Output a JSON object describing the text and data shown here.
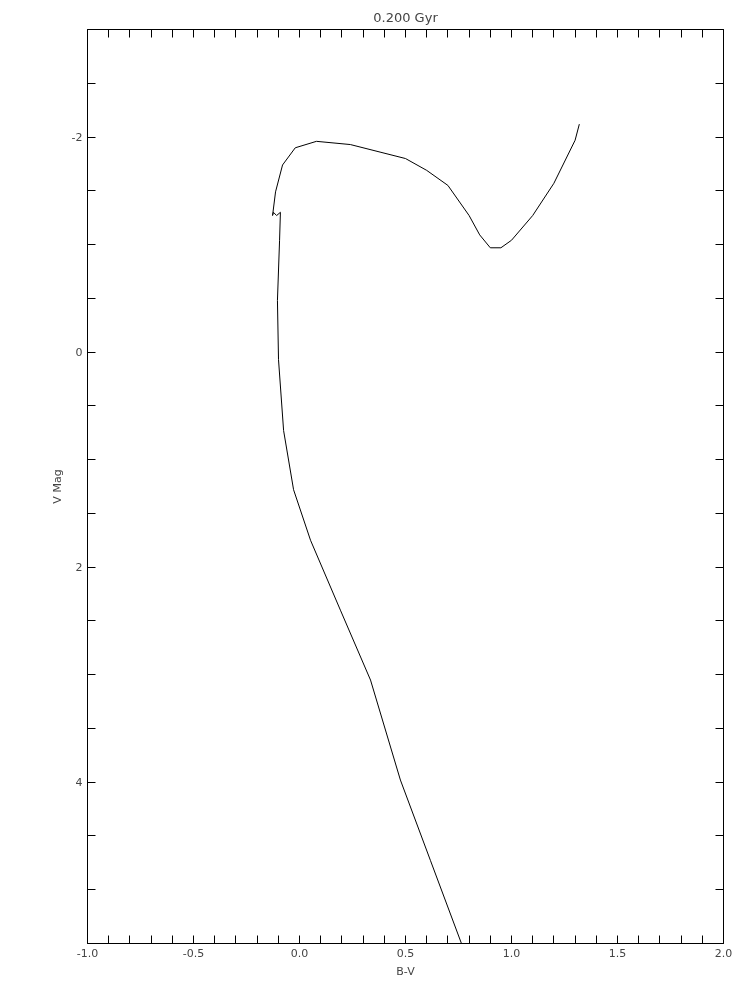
{
  "chart_data": {
    "type": "line",
    "title": "0.200 Gyr",
    "xlabel": "B-V",
    "ylabel": "V Mag",
    "xlim": [
      -1.0,
      2.0
    ],
    "ylim": [
      5.5,
      -3.0
    ],
    "xticks": [
      {
        "value": -1.0,
        "label": "-1.0"
      },
      {
        "value": -0.9,
        "label": null
      },
      {
        "value": -0.8,
        "label": null
      },
      {
        "value": -0.7,
        "label": null
      },
      {
        "value": -0.6,
        "label": null
      },
      {
        "value": -0.5,
        "label": "-0.5"
      },
      {
        "value": -0.4,
        "label": null
      },
      {
        "value": -0.3,
        "label": null
      },
      {
        "value": -0.2,
        "label": null
      },
      {
        "value": -0.1,
        "label": null
      },
      {
        "value": 0,
        "label": "0.0"
      },
      {
        "value": 0.1,
        "label": null
      },
      {
        "value": 0.2,
        "label": null
      },
      {
        "value": 0.3,
        "label": null
      },
      {
        "value": 0.4,
        "label": null
      },
      {
        "value": 0.5,
        "label": "0.5"
      },
      {
        "value": 0.6,
        "label": null
      },
      {
        "value": 0.7,
        "label": null
      },
      {
        "value": 0.8,
        "label": null
      },
      {
        "value": 0.9,
        "label": null
      },
      {
        "value": 1.0,
        "label": "1.0"
      },
      {
        "value": 1.1,
        "label": null
      },
      {
        "value": 1.2,
        "label": null
      },
      {
        "value": 1.3,
        "label": null
      },
      {
        "value": 1.4,
        "label": null
      },
      {
        "value": 1.5,
        "label": "1.5"
      },
      {
        "value": 1.6,
        "label": null
      },
      {
        "value": 1.7,
        "label": null
      },
      {
        "value": 1.8,
        "label": null
      },
      {
        "value": 1.9,
        "label": null
      },
      {
        "value": 2.0,
        "label": "2.0"
      }
    ],
    "yticks": [
      {
        "value": -2.5,
        "label": null
      },
      -2,
      {
        "value": -1.5,
        "label": null
      },
      {
        "value": -1,
        "label": null
      },
      {
        "value": -0.5,
        "label": null
      },
      0,
      {
        "value": 0.5,
        "label": null
      },
      {
        "value": 1,
        "label": null
      },
      {
        "value": 1.5,
        "label": null
      },
      2,
      {
        "value": 2.5,
        "label": null
      },
      {
        "value": 3,
        "label": null
      },
      {
        "value": 3.5,
        "label": null
      },
      4,
      {
        "value": 4.5,
        "label": null
      },
      {
        "value": 5,
        "label": null
      }
    ],
    "grid": false,
    "series": [
      {
        "color": "#000000",
        "x": [
          0.764,
          0.618,
          0.476,
          0.335,
          0.193,
          0.052,
          -0.028,
          -0.075,
          -0.099,
          -0.104,
          -0.094,
          -0.09,
          -0.108,
          -0.123,
          -0.127,
          -0.113,
          -0.08,
          -0.02,
          0.08,
          0.24,
          0.38,
          0.5,
          0.6,
          0.7,
          0.8,
          0.85,
          0.9,
          0.95,
          1.0,
          1.1,
          1.2,
          1.3,
          1.32
        ],
        "values": [
          5.5,
          4.73,
          3.98,
          3.05,
          2.4,
          1.75,
          1.28,
          0.73,
          0.07,
          -0.48,
          -1.04,
          -1.3,
          -1.27,
          -1.3,
          -1.27,
          -1.49,
          -1.74,
          -1.9,
          -1.96,
          -1.93,
          -1.86,
          -1.8,
          -1.69,
          -1.55,
          -1.27,
          -1.09,
          -0.97,
          -0.97,
          -1.04,
          -1.27,
          -1.57,
          -1.97,
          -2.12
        ]
      }
    ]
  }
}
